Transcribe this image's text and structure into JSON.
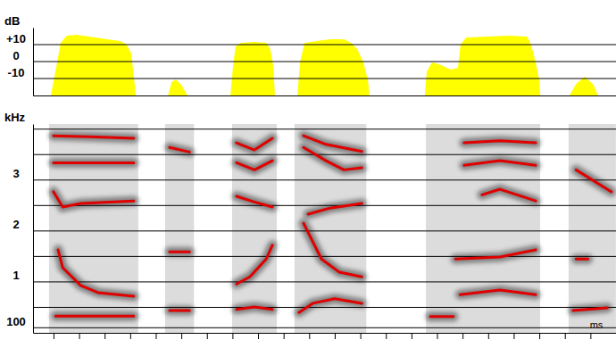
{
  "chart_data": [
    {
      "type": "area",
      "ylabel": "dB",
      "color": "#ffff00",
      "xlim": [
        -40,
        1100
      ],
      "ylim": [
        -20,
        20
      ],
      "yticks": [
        {
          "value": 10,
          "label": "+10"
        },
        0,
        -10
      ],
      "grid": true,
      "tick_labels": "y",
      "x": [
        -5,
        7,
        14,
        26,
        44,
        70,
        105,
        131,
        143,
        152,
        157,
        161,
        190,
        224,
        231,
        239,
        250,
        262,
        300,
        346,
        351,
        356,
        367,
        393,
        416,
        424,
        430,
        433,
        450,
        477,
        482,
        491,
        515,
        541,
        568,
        582,
        594,
        606,
        615,
        618,
        680,
        726,
        730,
        740,
        754,
        777,
        791,
        796,
        807,
        847,
        891,
        926,
        934,
        943,
        950,
        952,
        980,
        1009,
        1022,
        1039,
        1056,
        1065
      ],
      "values": [
        -20,
        -0.5,
        11.1,
        15.3,
        15.8,
        14.7,
        13.2,
        12.1,
        10,
        4.7,
        -8.4,
        -20,
        null,
        -20,
        -12.1,
        -10.5,
        -13.7,
        -20,
        null,
        -20,
        -3.2,
        8.9,
        11,
        11.6,
        11,
        7.4,
        -3,
        -20,
        null,
        -20,
        -0.5,
        11,
        12.1,
        13.2,
        13.2,
        11,
        7.4,
        -0.5,
        -11,
        -20,
        null,
        -20,
        -5.8,
        -0.5,
        -1.6,
        -4.7,
        -3.7,
        10,
        14.2,
        14.7,
        15.3,
        14.7,
        10,
        -0.5,
        -11,
        -20,
        null,
        -20,
        -13.2,
        -8.9,
        -13.7,
        -20
      ]
    },
    {
      "type": "line",
      "ylabel": "kHz",
      "xlabel": "ms",
      "xlim": [
        -40,
        1100
      ],
      "ylim": [
        0,
        4.1
      ],
      "xticks": [
        0,
        50,
        100,
        150,
        200,
        250,
        300,
        350,
        400,
        450,
        500,
        550,
        600,
        650,
        700,
        750,
        800,
        850,
        900,
        950,
        1000,
        1050,
        1100
      ],
      "yticks": [
        {
          "value": 0.1,
          "label": "100"
        },
        {
          "value": 0.5,
          "label": null
        },
        1,
        {
          "value": 1.5,
          "label": null
        },
        2,
        {
          "value": 2.5,
          "label": null
        },
        3,
        {
          "value": 3.5,
          "label": null
        },
        {
          "value": 4,
          "label": null
        }
      ],
      "grid": true,
      "tick_labels": "y",
      "series": [
        {
          "color": "#e00000",
          "x": [
            4,
            80,
            157,
            190,
            227,
            266,
            300,
            358,
            393,
            428,
            450,
            480,
            507,
            550,
            603,
            680,
            737,
            782,
            788,
            795,
            873,
            943,
            980,
            1016,
            1083
          ],
          "values": [
            0.33,
            0.33,
            0.33,
            null,
            0.44,
            0.44,
            null,
            0.46,
            0.51,
            0.46,
            null,
            0.4,
            0.58,
            0.67,
            0.58,
            null,
            0.32,
            0.32,
            null,
            0.75,
            0.84,
            0.75,
            null,
            0.44,
            0.49
          ]
        },
        {
          "color": "#e00000",
          "x": [
            9,
            18,
            53,
            87,
            157,
            190,
            227,
            266,
            300,
            358,
            384,
            416,
            428,
            450,
            489,
            524,
            559,
            603,
            680,
            786,
            873,
            943,
            980,
            1022,
            1045
          ],
          "values": [
            1.63,
            1.28,
            0.93,
            0.79,
            0.72,
            null,
            1.59,
            1.59,
            null,
            0.96,
            1.1,
            1.45,
            1.72,
            null,
            2.15,
            1.45,
            1.19,
            1.1,
            null,
            1.45,
            1.49,
            1.63,
            null,
            1.45,
            1.45
          ]
        },
        {
          "color": "#e00000",
          "x": [
            0,
            18,
            53,
            157,
            200,
            358,
            393,
            428,
            450,
            498,
            541,
            603,
            680,
            838,
            873,
            943
          ],
          "values": [
            2.77,
            2.47,
            2.54,
            2.59,
            null,
            2.68,
            2.57,
            2.47,
            null,
            2.33,
            2.45,
            2.54,
            null,
            2.71,
            2.82,
            2.59
          ]
        },
        {
          "color": "#e00000",
          "x": [
            0,
            80,
            157,
            190,
            227,
            266,
            300,
            358,
            393,
            428,
            450,
            489,
            533,
            568,
            603,
            680,
            803,
            873,
            943,
            980,
            1022,
            1091
          ],
          "values": [
            3.34,
            3.34,
            3.34,
            null,
            3.64,
            3.55,
            null,
            3.34,
            3.2,
            3.38,
            null,
            3.64,
            3.38,
            3.2,
            3.24,
            null,
            3.29,
            3.38,
            3.29,
            null,
            3.2,
            2.77
          ]
        },
        {
          "color": "#e00000",
          "x": [
            0,
            70,
            157,
            200,
            358,
            393,
            428,
            450,
            489,
            533,
            603,
            680,
            803,
            873,
            943
          ],
          "values": [
            3.87,
            3.85,
            3.82,
            null,
            3.73,
            3.59,
            3.82,
            null,
            3.87,
            3.7,
            3.56,
            null,
            3.73,
            3.77,
            3.73
          ]
        }
      ]
    }
  ]
}
